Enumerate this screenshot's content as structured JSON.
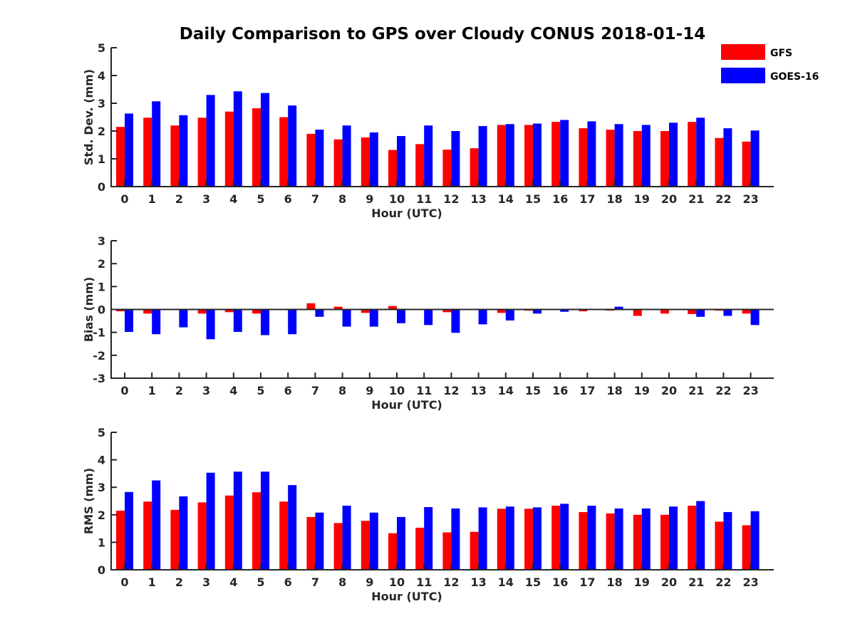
{
  "chart_data": {
    "title": "Daily Comparison to GPS over Cloudy CONUS 2018-01-14",
    "type": "bar",
    "legend": {
      "placement": "top-right",
      "entries": [
        "GFS",
        "GOES-16"
      ]
    },
    "colors": {
      "GFS": "#ff0000",
      "GOES-16": "#0000ff"
    },
    "grid": false,
    "categories": [
      "0",
      "1",
      "2",
      "3",
      "4",
      "5",
      "6",
      "7",
      "8",
      "9",
      "10",
      "11",
      "12",
      "13",
      "14",
      "15",
      "16",
      "17",
      "18",
      "19",
      "20",
      "21",
      "22",
      "23"
    ],
    "panels": [
      {
        "ylabel": "Std. Dev. (mm)",
        "xlabel": "Hour (UTC)",
        "ylim": [
          0,
          5
        ],
        "yticks": [
          "0",
          "1",
          "2",
          "3",
          "4",
          "5"
        ],
        "series": [
          {
            "name": "GFS",
            "values": [
              2.15,
              2.48,
              2.2,
              2.48,
              2.7,
              2.82,
              2.5,
              1.9,
              1.7,
              1.77,
              1.32,
              1.53,
              1.33,
              1.38,
              2.22,
              2.22,
              2.33,
              2.1,
              2.05,
              2.0,
              2.0,
              2.33,
              1.75,
              1.62
            ]
          },
          {
            "name": "GOES-16",
            "values": [
              2.63,
              3.07,
              2.57,
              3.3,
              3.43,
              3.37,
              2.92,
              2.05,
              2.2,
              1.95,
              1.82,
              2.2,
              2.0,
              2.18,
              2.25,
              2.27,
              2.4,
              2.35,
              2.25,
              2.22,
              2.3,
              2.48,
              2.1,
              2.02
            ]
          }
        ]
      },
      {
        "ylabel": "Bias (mm)",
        "xlabel": "Hour (UTC)",
        "ylim": [
          -3,
          3
        ],
        "yticks": [
          "-3",
          "-2",
          "-1",
          "0",
          "1",
          "2",
          "3"
        ],
        "series": [
          {
            "name": "GFS",
            "values": [
              -0.08,
              -0.18,
              -0.03,
              -0.18,
              -0.12,
              -0.18,
              -0.03,
              0.27,
              0.12,
              -0.15,
              0.15,
              -0.03,
              -0.12,
              0.02,
              -0.15,
              -0.05,
              -0.03,
              -0.08,
              -0.05,
              -0.28,
              -0.18,
              -0.2,
              -0.05,
              -0.18
            ]
          },
          {
            "name": "GOES-16",
            "values": [
              -0.98,
              -1.08,
              -0.78,
              -1.3,
              -0.98,
              -1.12,
              -1.08,
              -0.32,
              -0.75,
              -0.75,
              -0.6,
              -0.68,
              -1.02,
              -0.65,
              -0.48,
              -0.18,
              -0.1,
              -0.03,
              0.12,
              0.03,
              -0.03,
              -0.32,
              -0.28,
              -0.68
            ]
          }
        ]
      },
      {
        "ylabel": "RMS (mm)",
        "xlabel": "Hour (UTC)",
        "ylim": [
          0,
          5
        ],
        "yticks": [
          "0",
          "1",
          "2",
          "3",
          "4",
          "5"
        ],
        "series": [
          {
            "name": "GFS",
            "values": [
              2.15,
              2.48,
              2.18,
              2.45,
              2.7,
              2.82,
              2.48,
              1.92,
              1.7,
              1.78,
              1.33,
              1.53,
              1.36,
              1.38,
              2.22,
              2.22,
              2.33,
              2.1,
              2.05,
              2.0,
              2.0,
              2.33,
              1.75,
              1.62
            ]
          },
          {
            "name": "GOES-16",
            "values": [
              2.83,
              3.25,
              2.67,
              3.53,
              3.57,
              3.57,
              3.08,
              2.08,
              2.33,
              2.08,
              1.92,
              2.28,
              2.23,
              2.27,
              2.3,
              2.27,
              2.4,
              2.33,
              2.23,
              2.23,
              2.3,
              2.5,
              2.1,
              2.13
            ]
          }
        ]
      }
    ]
  }
}
